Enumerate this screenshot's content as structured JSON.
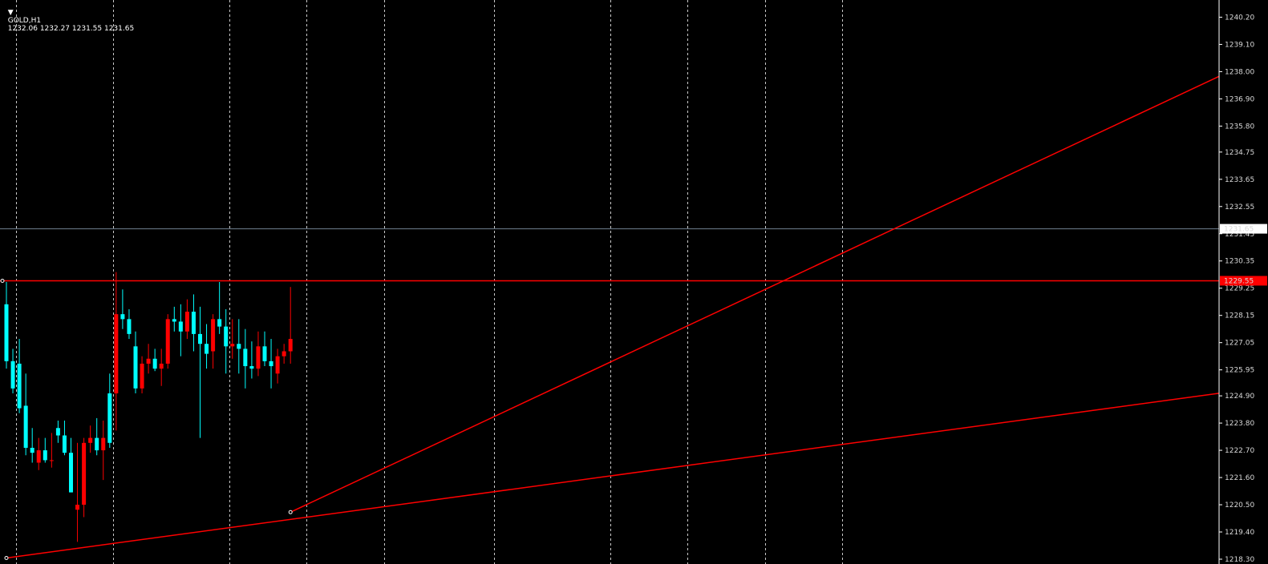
{
  "header": {
    "symbol": "GOLD,H1",
    "ohlc": "1232.06 1232.27 1231.55 1231.65"
  },
  "colors": {
    "background": "#000000",
    "bull": "#ff0000",
    "bear": "#00ffff",
    "grid": "#c8c8c8",
    "axis_text": "#d8d8d8",
    "bid_line": "#708090",
    "trendline": "#ff0000"
  },
  "chart_data": {
    "type": "candlestick",
    "ylim": [
      1218.3,
      1240.7
    ],
    "y_ticks": [
      "1240.20",
      "1239.10",
      "1238.00",
      "1236.90",
      "1235.80",
      "1234.75",
      "1233.65",
      "1232.55",
      "1231.45",
      "1230.35",
      "1229.25",
      "1228.15",
      "1227.05",
      "1225.95",
      "1224.90",
      "1223.80",
      "1222.70",
      "1221.60",
      "1220.50",
      "1219.40",
      "1218.30"
    ],
    "current_price": 1231.65,
    "current_price_label": "1231.65",
    "horizontal_level": 1229.55,
    "horizontal_level_label": "1229.55",
    "trendlines": [
      {
        "from": [
          0,
          1218.35
        ],
        "to": [
          151,
          1223.7
        ]
      },
      {
        "from": [
          44,
          1220.2
        ],
        "to": [
          151,
          1233.3
        ]
      }
    ],
    "grid": true,
    "period_separators_at": [
      1.5,
      16.5,
      34.5,
      46.5,
      58.5,
      75.5,
      93.5,
      105.5,
      117.5,
      129.5
    ],
    "candles": [
      [
        1228.6,
        1229.5,
        1226.0,
        1226.3
      ],
      [
        1226.3,
        1226.8,
        1225.0,
        1225.2
      ],
      [
        1226.2,
        1227.2,
        1224.2,
        1224.4
      ],
      [
        1224.5,
        1225.8,
        1222.5,
        1222.8
      ],
      [
        1222.8,
        1223.6,
        1222.2,
        1222.6
      ],
      [
        1222.2,
        1223.2,
        1221.9,
        1222.7
      ],
      [
        1222.7,
        1223.2,
        1222.2,
        1222.3
      ],
      [
        1222.3,
        1223.4,
        1222.0,
        1222.3
      ],
      [
        1223.6,
        1223.9,
        1223.0,
        1223.3
      ],
      [
        1223.3,
        1223.9,
        1222.5,
        1222.6
      ],
      [
        1222.6,
        1223.2,
        1221.0,
        1221.0
      ],
      [
        1220.3,
        1223.0,
        1219.0,
        1220.5
      ],
      [
        1220.5,
        1223.2,
        1220.0,
        1223.0
      ],
      [
        1223.0,
        1223.7,
        1222.6,
        1223.2
      ],
      [
        1223.2,
        1224.0,
        1222.5,
        1222.7
      ],
      [
        1222.7,
        1223.9,
        1221.5,
        1223.2
      ],
      [
        1225.0,
        1225.8,
        1222.8,
        1223.0
      ],
      [
        1225.0,
        1229.9,
        1223.5,
        1228.2
      ],
      [
        1228.2,
        1229.2,
        1227.6,
        1228.0
      ],
      [
        1228.0,
        1228.4,
        1227.2,
        1227.4
      ],
      [
        1226.9,
        1227.5,
        1225.0,
        1225.2
      ],
      [
        1225.2,
        1226.5,
        1225.0,
        1226.2
      ],
      [
        1226.2,
        1227.0,
        1225.8,
        1226.4
      ],
      [
        1226.4,
        1226.8,
        1225.9,
        1226.0
      ],
      [
        1226.0,
        1226.8,
        1225.3,
        1226.2
      ],
      [
        1226.2,
        1228.2,
        1226.0,
        1228.0
      ],
      [
        1228.0,
        1228.5,
        1227.5,
        1227.9
      ],
      [
        1227.9,
        1228.6,
        1226.5,
        1227.5
      ],
      [
        1227.5,
        1228.8,
        1227.2,
        1228.3
      ],
      [
        1228.3,
        1229.0,
        1226.7,
        1227.4
      ],
      [
        1227.4,
        1228.5,
        1223.2,
        1227.0
      ],
      [
        1227.0,
        1227.8,
        1226.0,
        1226.6
      ],
      [
        1226.7,
        1228.2,
        1226.0,
        1228.0
      ],
      [
        1228.0,
        1229.5,
        1227.4,
        1227.7
      ],
      [
        1227.7,
        1228.4,
        1225.8,
        1226.9
      ],
      [
        1226.9,
        1228.0,
        1226.4,
        1227.0
      ],
      [
        1227.0,
        1228.0,
        1225.8,
        1226.8
      ],
      [
        1226.8,
        1227.6,
        1225.2,
        1226.1
      ],
      [
        1226.1,
        1227.1,
        1225.6,
        1226.0
      ],
      [
        1226.0,
        1227.5,
        1225.7,
        1226.9
      ],
      [
        1226.9,
        1227.5,
        1226.1,
        1226.3
      ],
      [
        1226.3,
        1227.2,
        1225.2,
        1226.1
      ],
      [
        1225.8,
        1226.8,
        1225.4,
        1226.5
      ],
      [
        1226.5,
        1227.0,
        1226.2,
        1226.7
      ],
      [
        1226.7,
        1229.3,
        1226.2,
        1227.2
      ]
    ]
  }
}
